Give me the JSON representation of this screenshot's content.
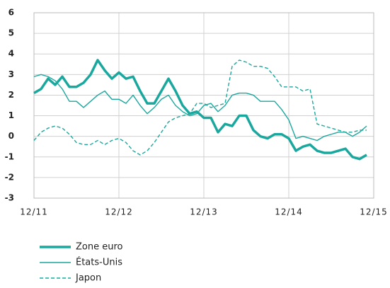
{
  "chart_data": {
    "type": "line",
    "categories": [
      "12/11",
      null,
      null,
      null,
      null,
      null,
      null,
      null,
      null,
      null,
      null,
      null,
      "12/12",
      null,
      null,
      null,
      null,
      null,
      null,
      null,
      null,
      null,
      null,
      null,
      "12/13",
      null,
      null,
      null,
      null,
      null,
      null,
      null,
      null,
      null,
      null,
      null,
      "12/14",
      null,
      null,
      null,
      null,
      null,
      null,
      null,
      null,
      null,
      null,
      null,
      "12/15"
    ],
    "series": [
      {
        "name": "Zone euro",
        "color": "#1aa89e",
        "style": "thick",
        "values": [
          2.1,
          2.3,
          2.8,
          2.5,
          2.9,
          2.4,
          2.4,
          2.6,
          3.0,
          3.7,
          3.2,
          2.8,
          3.1,
          2.8,
          2.9,
          2.2,
          1.6,
          1.6,
          2.2,
          2.8,
          2.2,
          1.5,
          1.1,
          1.2,
          0.9,
          0.9,
          0.2,
          0.6,
          0.5,
          1.0,
          1.0,
          0.3,
          0.0,
          -0.1,
          0.1,
          0.1,
          -0.1,
          -0.7,
          -0.5,
          -0.4,
          -0.7,
          -0.8,
          -0.8,
          -0.7,
          -0.6,
          -1.0,
          -1.1,
          -0.9,
          null
        ]
      },
      {
        "name": "États-Unis",
        "color": "#1aa89e",
        "style": "thin",
        "values": [
          2.9,
          3.0,
          2.9,
          2.7,
          2.3,
          1.7,
          1.7,
          1.4,
          1.7,
          2.0,
          2.2,
          1.8,
          1.8,
          1.6,
          2.0,
          1.5,
          1.1,
          1.4,
          1.8,
          2.0,
          1.5,
          1.2,
          1.0,
          1.1,
          1.5,
          1.6,
          1.2,
          1.5,
          2.0,
          2.1,
          2.1,
          2.0,
          1.7,
          1.7,
          1.7,
          1.3,
          0.8,
          -0.1,
          0.0,
          -0.1,
          -0.2,
          0.0,
          0.1,
          0.2,
          0.2,
          0.0,
          0.2,
          0.5,
          null
        ]
      },
      {
        "name": "Japon",
        "color": "#1aa89e",
        "style": "dashed",
        "values": [
          -0.2,
          0.2,
          0.4,
          0.5,
          0.4,
          0.1,
          -0.3,
          -0.4,
          -0.4,
          -0.2,
          -0.4,
          -0.2,
          -0.1,
          -0.3,
          -0.7,
          -0.9,
          -0.7,
          -0.3,
          0.2,
          0.7,
          0.9,
          1.0,
          1.1,
          1.6,
          1.6,
          1.4,
          1.5,
          1.6,
          3.4,
          3.7,
          3.6,
          3.4,
          3.4,
          3.3,
          2.9,
          2.4,
          2.4,
          2.4,
          2.2,
          2.3,
          0.6,
          0.5,
          0.4,
          0.3,
          0.2,
          0.2,
          0.3,
          0.3,
          null
        ]
      }
    ],
    "ylim": [
      -3,
      6
    ],
    "yticks": [
      -3,
      -2,
      -1,
      0,
      1,
      2,
      3,
      4,
      5,
      6
    ],
    "grid": true,
    "legend": "bottom-left"
  }
}
